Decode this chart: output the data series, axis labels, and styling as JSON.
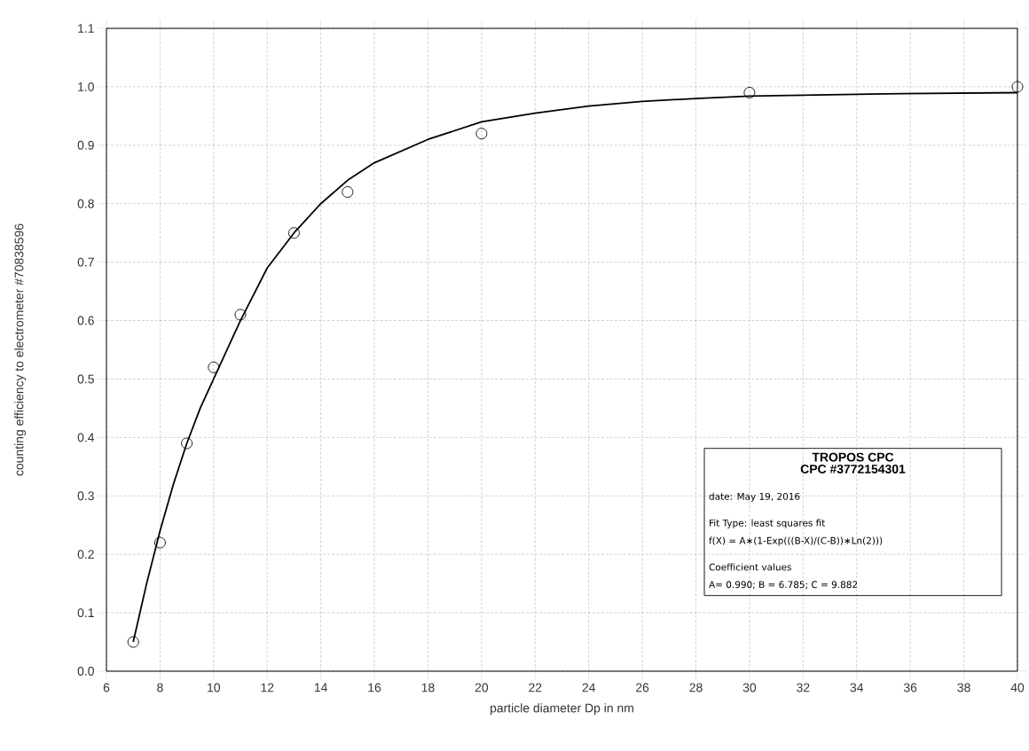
{
  "chart_data": {
    "type": "scatter",
    "xlabel": "particle diameter Dp in nm",
    "ylabel": "counting efficiency to electrometer #70838596",
    "xlim": [
      6,
      40
    ],
    "ylim": [
      0,
      1.1
    ],
    "xticks": [
      6,
      8,
      10,
      12,
      14,
      16,
      18,
      20,
      22,
      24,
      26,
      28,
      30,
      32,
      34,
      36,
      38,
      40
    ],
    "yticks": [
      {
        "value": 0,
        "label": "0.0"
      },
      0.1,
      0.2,
      0.3,
      0.4,
      0.5,
      0.6,
      0.7,
      0.8,
      0.9,
      {
        "value": 1,
        "label": "1.0"
      },
      1.1
    ],
    "grid": true,
    "series": [
      {
        "color": "#000000",
        "marker": "circle",
        "x": [
          7,
          8,
          9,
          10,
          11,
          13,
          15,
          20,
          30,
          40
        ],
        "values": [
          0.05,
          0.22,
          0.39,
          0.52,
          0.61,
          0.75,
          0.82,
          0.92,
          0.99,
          1.0
        ]
      },
      {
        "type": "line",
        "color": "#000000",
        "marker": "none",
        "line_style": "solid",
        "x": [
          7,
          7.5,
          8,
          8.5,
          9,
          9.5,
          10,
          11,
          12,
          13,
          14,
          15,
          16,
          18,
          20,
          22,
          24,
          26,
          28,
          30,
          35,
          40
        ],
        "values": [
          0.05,
          0.15,
          0.24,
          0.32,
          0.39,
          0.45,
          0.5,
          0.6,
          0.69,
          0.75,
          0.8,
          0.84,
          0.87,
          0.91,
          0.94,
          0.955,
          0.967,
          0.975,
          0.98,
          0.984,
          0.988,
          0.99
        ]
      }
    ],
    "annotations": [
      "TROPOS CPC",
      "CPC #3772154301",
      "date: May 19, 2016",
      "Fit Type: least squares fit",
      "f(X) = A∗(1-Exp(((B-X)/(C-B))∗Ln(2)))",
      "Coefficient values",
      "A= 0.990; B = 6.785; C = 9.882"
    ]
  }
}
